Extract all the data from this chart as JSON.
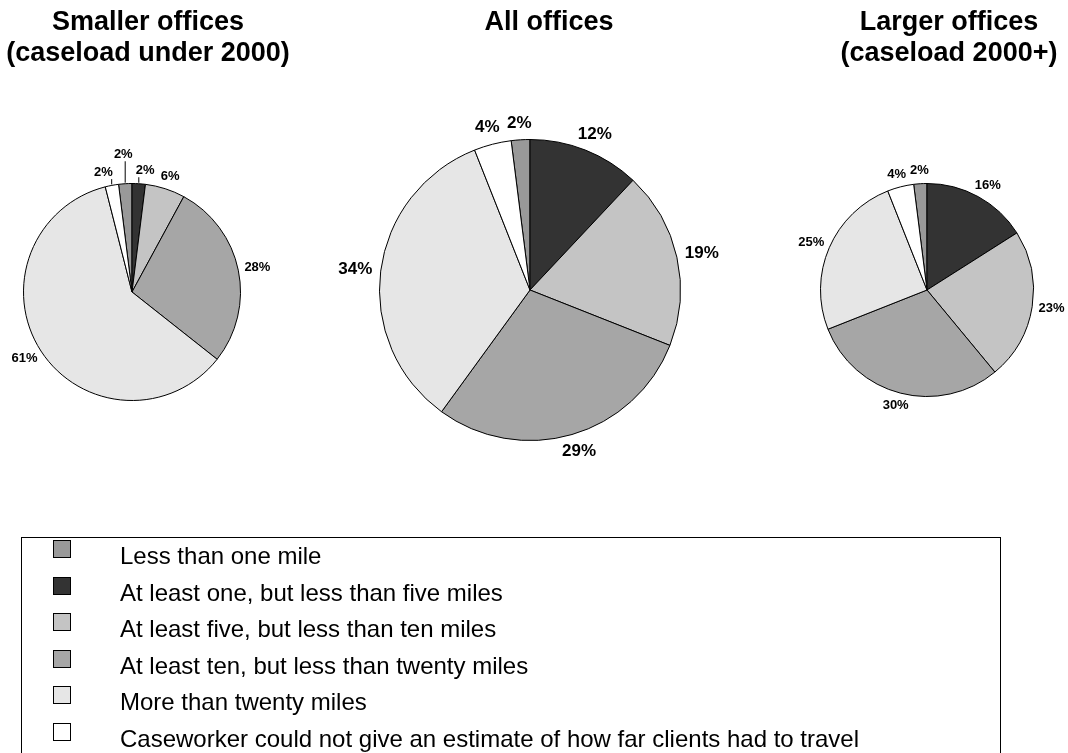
{
  "chart_data": [
    {
      "type": "pie",
      "title": "Smaller offices\n(caseload under 2000)",
      "categories": [
        "Less than one mile",
        "At least one, but less than five miles",
        "At least five, but less than ten miles",
        "At least ten, but less than twenty miles",
        "More than twenty miles",
        "Caseworker could not give an estimate of how far clients had to travel"
      ],
      "values": [
        2,
        2,
        6,
        28,
        61,
        2
      ],
      "colors": [
        "#999999",
        "#333333",
        "#c4c4c4",
        "#a6a6a6",
        "#e6e6e6",
        "#ffffff"
      ],
      "value_labels": [
        "2%",
        "2%",
        "6%",
        "28%",
        "61%",
        "2%"
      ],
      "legend": "bottom"
    },
    {
      "type": "pie",
      "title": "All offices",
      "categories": [
        null,
        null,
        null,
        null,
        null,
        null
      ],
      "values": [
        2,
        12,
        19,
        29,
        34,
        4
      ],
      "colors": [
        "#999999",
        "#333333",
        "#c4c4c4",
        "#a6a6a6",
        "#e6e6e6",
        "#ffffff"
      ],
      "value_labels": [
        "2%",
        "12%",
        "19%",
        "29%",
        "34%",
        "4%"
      ]
    },
    {
      "type": "pie",
      "title": "Larger offices\n(caseload 2000+)",
      "categories": [
        null,
        null,
        null,
        null,
        null,
        null
      ],
      "values": [
        2,
        16,
        23,
        30,
        25,
        4
      ],
      "colors": [
        "#999999",
        "#333333",
        "#c4c4c4",
        "#a6a6a6",
        "#e6e6e6",
        "#ffffff"
      ],
      "value_labels": [
        "2%",
        "16%",
        "23%",
        "30%",
        "25%",
        "4%"
      ]
    }
  ]
}
